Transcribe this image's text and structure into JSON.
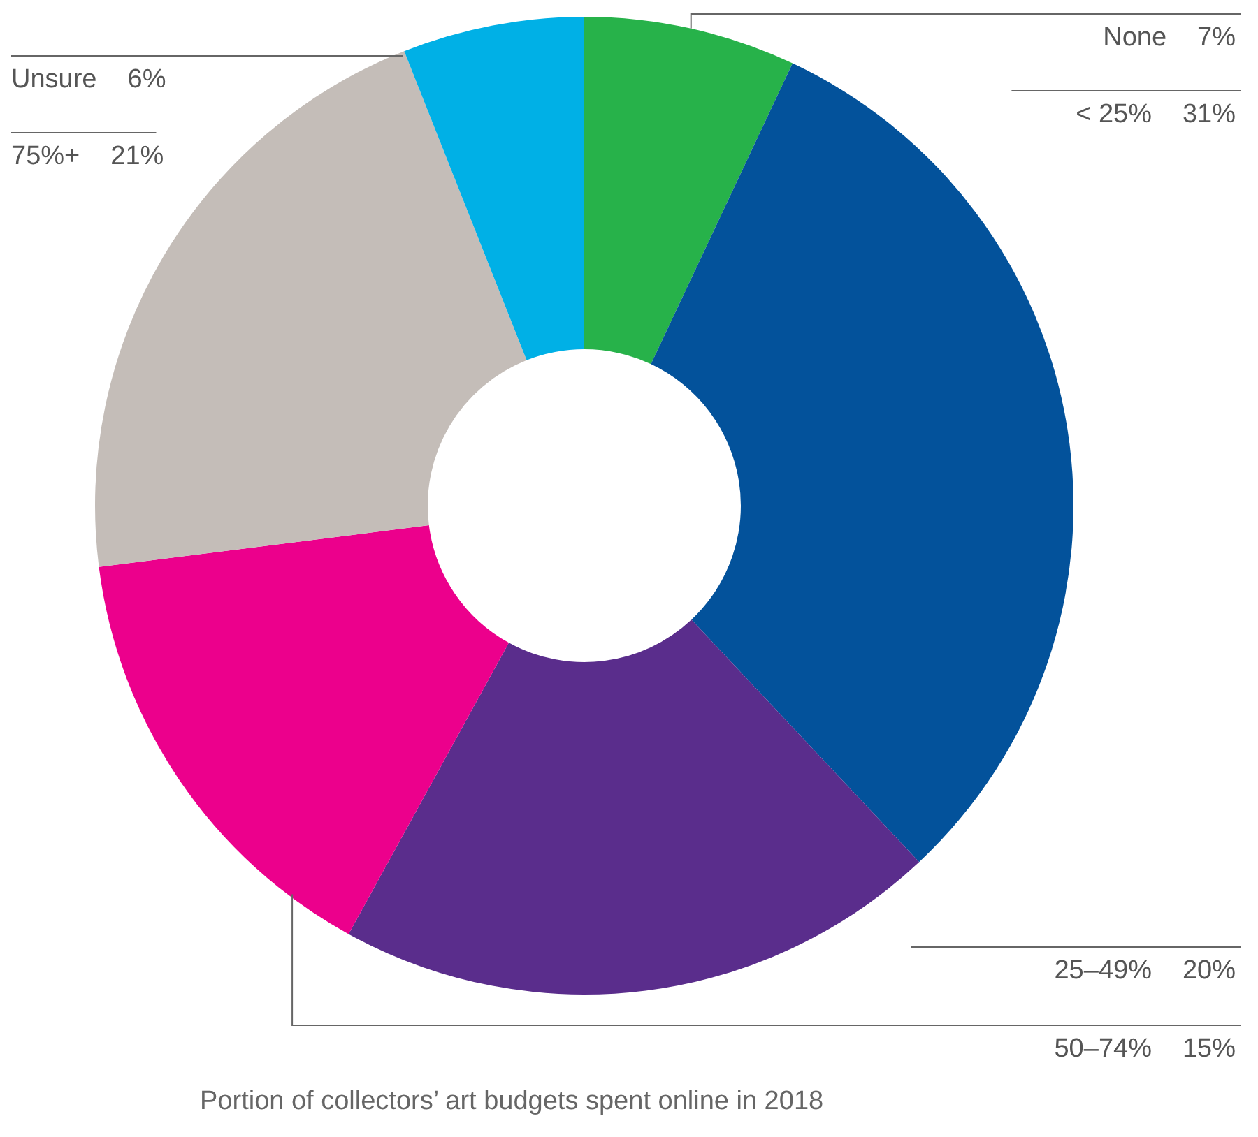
{
  "chart_data": {
    "type": "donut",
    "title": "Portion of collectors’ art budgets spent online in 2018",
    "categories": [
      "None",
      "< 25%",
      "25–49%",
      "50–74%",
      "75%+",
      "Unsure"
    ],
    "values": [
      7,
      31,
      20,
      15,
      21,
      6
    ],
    "colors": [
      "#27b24a",
      "#03529b",
      "#5a2d8c",
      "#ec008c",
      "#c4bdb8",
      "#00b0e6"
    ],
    "value_labels": [
      "7%",
      "31%",
      "20%",
      "15%",
      "21%",
      "6%"
    ]
  }
}
